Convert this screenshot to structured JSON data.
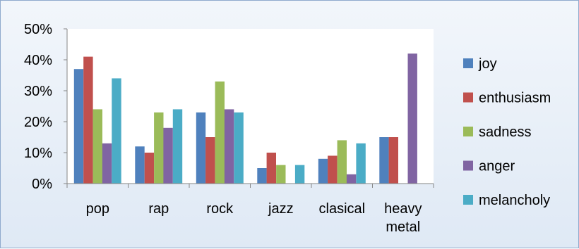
{
  "chart_data": {
    "type": "bar",
    "categories": [
      "pop",
      "rap",
      "rock",
      "jazz",
      "clasical",
      "heavy metal"
    ],
    "category_tick_lines": [
      [
        "pop"
      ],
      [
        "rap"
      ],
      [
        "rock"
      ],
      [
        "jazz"
      ],
      [
        "clasical"
      ],
      [
        "heavy",
        "metal"
      ]
    ],
    "series": [
      {
        "name": "joy",
        "color": "#4f81bd",
        "values": [
          37,
          12,
          23,
          5,
          8,
          15
        ]
      },
      {
        "name": "enthusiasm",
        "color": "#c0504d",
        "values": [
          41,
          10,
          15,
          10,
          9,
          15
        ]
      },
      {
        "name": "sadness",
        "color": "#9bbb59",
        "values": [
          24,
          23,
          33,
          6,
          14,
          0
        ]
      },
      {
        "name": "anger",
        "color": "#8064a2",
        "values": [
          13,
          18,
          24,
          0,
          3,
          42
        ]
      },
      {
        "name": "melancholy",
        "color": "#4bacc6",
        "values": [
          34,
          24,
          23,
          6,
          13,
          0
        ]
      }
    ],
    "y_ticks": [
      "0%",
      "10%",
      "20%",
      "30%",
      "40%",
      "50%"
    ],
    "ylim": [
      0,
      50
    ],
    "y_unit": "percent",
    "title": "",
    "xlabel": "",
    "ylabel": "",
    "grid": false,
    "legend_position": "right"
  }
}
